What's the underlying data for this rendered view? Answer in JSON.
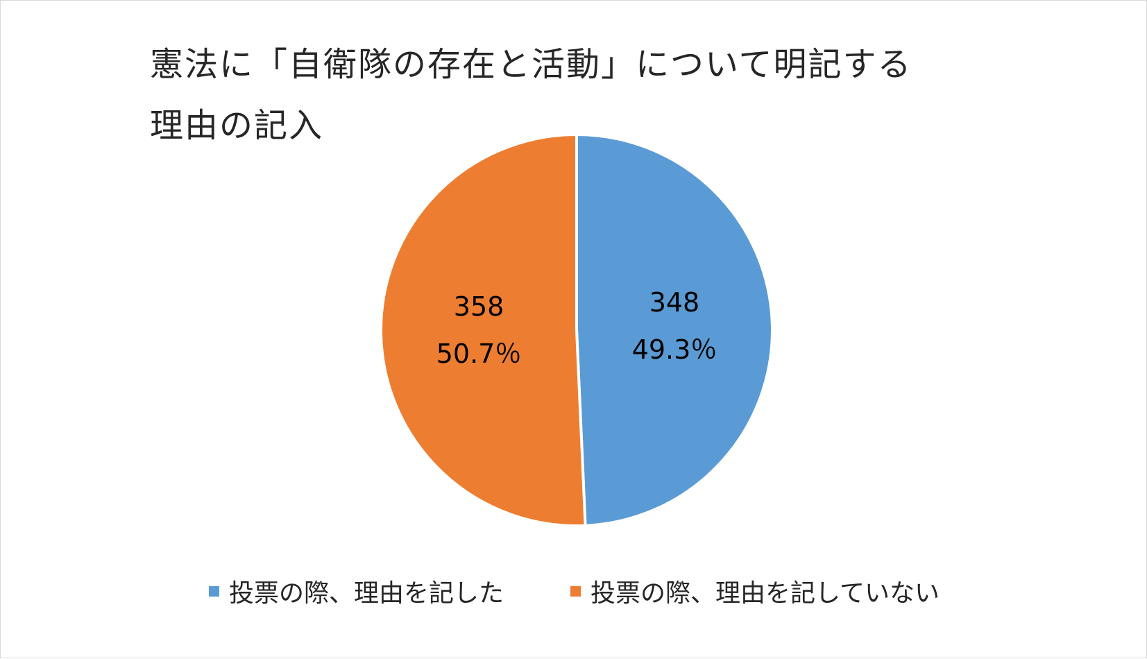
{
  "chart_data": {
    "type": "pie",
    "title_lines": [
      "憲法に「自衛隊の存在と活動」について明記する",
      "理由の記入"
    ],
    "slices": [
      {
        "label": "投票の際、理由を記した",
        "value": 348,
        "value_label": "348",
        "percent_label": "49.3％",
        "color": "#5b9bd5"
      },
      {
        "label": "投票の際、理由を記していない",
        "value": 358,
        "value_label": "358",
        "percent_label": "50.7％",
        "color": "#ed7d31"
      }
    ],
    "legend_position": "bottom",
    "start_angle_deg": 0,
    "direction": "clockwise"
  }
}
